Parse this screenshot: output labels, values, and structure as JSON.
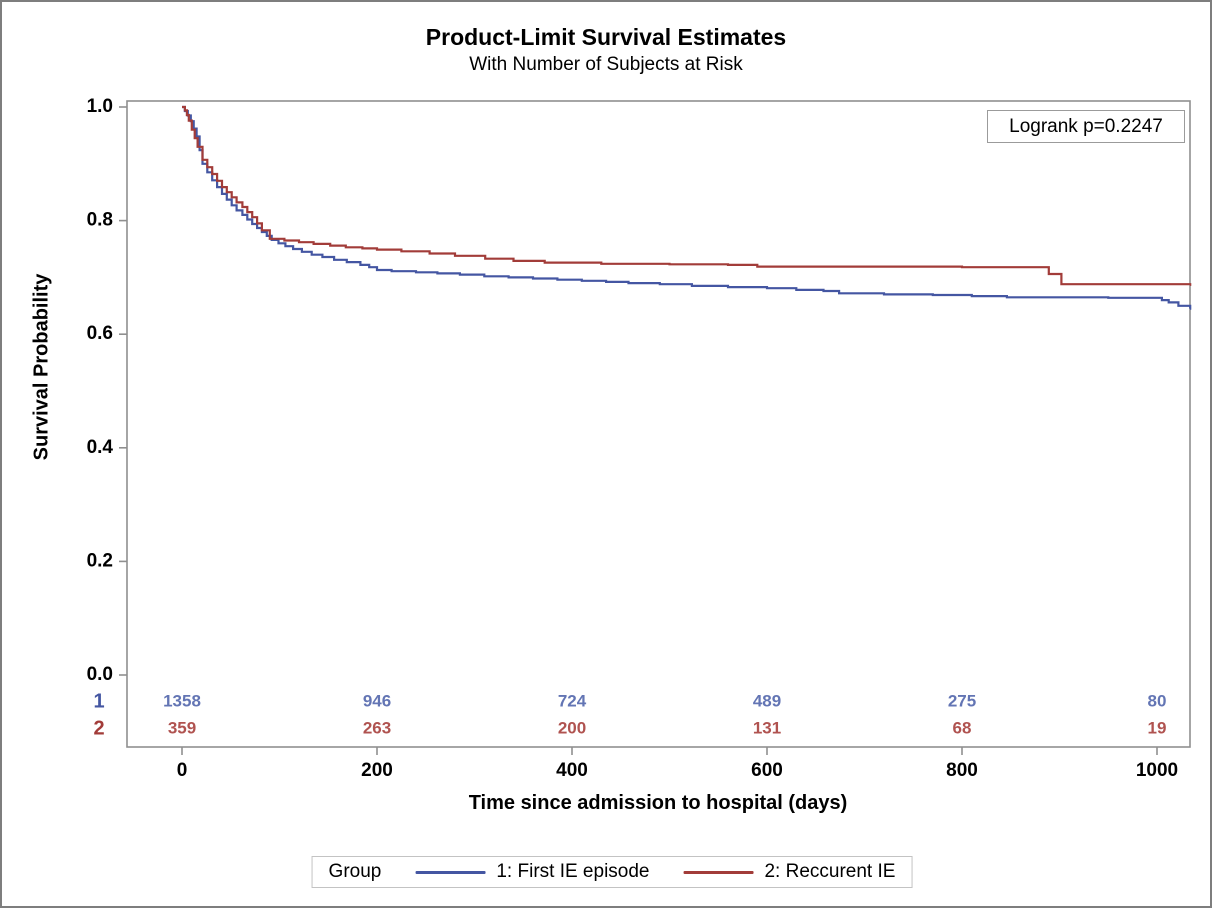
{
  "figure": {
    "title": "Product-Limit Survival Estimates",
    "subtitle": "With Number of Subjects at Risk",
    "pvalue_label": "Logrank p=0.2247"
  },
  "legend": {
    "title": "Group",
    "entries": [
      {
        "label": "1: First IE episode",
        "color": "#4456A2"
      },
      {
        "label": "2: Reccurent IE",
        "color": "#A23C39"
      }
    ]
  },
  "chart_data": {
    "type": "line",
    "subtype": "kaplan-meier-step",
    "title": "Product-Limit Survival Estimates",
    "subtitle": "With Number of Subjects at Risk",
    "xlabel": "Time since admission to hospital (days)",
    "ylabel": "Survival Probability",
    "xlim": [
      0,
      1034
    ],
    "ylim": [
      0.0,
      1.0
    ],
    "x_ticks": [
      0,
      200,
      400,
      600,
      800,
      1000
    ],
    "y_ticks": [
      1.0,
      0.8,
      0.6,
      0.4,
      0.2,
      0.0
    ],
    "grid": false,
    "legend_position": "bottom",
    "annotations": [
      "Logrank p=0.2247"
    ],
    "at_risk_times": [
      0,
      200,
      400,
      600,
      800,
      1000
    ],
    "axis_color": "#8f8f8f",
    "series": [
      {
        "name": "1: First IE episode",
        "group_label": "1",
        "color": "#4456A2",
        "at_risk_color": "#6375B4",
        "n_at_risk": [
          1358,
          946,
          724,
          489,
          275,
          80
        ],
        "points": [
          [
            0,
            1.0
          ],
          [
            3,
            0.993
          ],
          [
            6,
            0.985
          ],
          [
            9,
            0.975
          ],
          [
            12,
            0.962
          ],
          [
            15,
            0.948
          ],
          [
            18,
            0.924
          ],
          [
            21,
            0.9
          ],
          [
            26,
            0.885
          ],
          [
            31,
            0.871
          ],
          [
            36,
            0.859
          ],
          [
            41,
            0.847
          ],
          [
            46,
            0.837
          ],
          [
            51,
            0.827
          ],
          [
            56,
            0.818
          ],
          [
            62,
            0.81
          ],
          [
            67,
            0.802
          ],
          [
            72,
            0.794
          ],
          [
            77,
            0.787
          ],
          [
            82,
            0.78
          ],
          [
            87,
            0.773
          ],
          [
            92,
            0.766
          ],
          [
            99,
            0.76
          ],
          [
            106,
            0.755
          ],
          [
            114,
            0.75
          ],
          [
            123,
            0.745
          ],
          [
            133,
            0.74
          ],
          [
            144,
            0.736
          ],
          [
            156,
            0.731
          ],
          [
            169,
            0.727
          ],
          [
            183,
            0.722
          ],
          [
            192,
            0.718
          ],
          [
            200,
            0.713
          ],
          [
            215,
            0.711
          ],
          [
            240,
            0.709
          ],
          [
            262,
            0.707
          ],
          [
            285,
            0.705
          ],
          [
            310,
            0.702
          ],
          [
            335,
            0.7
          ],
          [
            360,
            0.698
          ],
          [
            385,
            0.696
          ],
          [
            410,
            0.694
          ],
          [
            435,
            0.692
          ],
          [
            458,
            0.69
          ],
          [
            490,
            0.688
          ],
          [
            523,
            0.685
          ],
          [
            560,
            0.683
          ],
          [
            600,
            0.681
          ],
          [
            630,
            0.678
          ],
          [
            658,
            0.676
          ],
          [
            674,
            0.672
          ],
          [
            720,
            0.67
          ],
          [
            770,
            0.669
          ],
          [
            810,
            0.667
          ],
          [
            846,
            0.665
          ],
          [
            950,
            0.664
          ],
          [
            1005,
            0.66
          ],
          [
            1012,
            0.656
          ],
          [
            1022,
            0.65
          ],
          [
            1034,
            0.645
          ]
        ]
      },
      {
        "name": "2: Reccurent IE",
        "group_label": "2",
        "color": "#A23C39",
        "at_risk_color": "#B05350",
        "n_at_risk": [
          359,
          263,
          200,
          131,
          68,
          19
        ],
        "points": [
          [
            0,
            1.0
          ],
          [
            3,
            0.994
          ],
          [
            5,
            0.986
          ],
          [
            7,
            0.976
          ],
          [
            10,
            0.96
          ],
          [
            13,
            0.945
          ],
          [
            16,
            0.93
          ],
          [
            21,
            0.907
          ],
          [
            26,
            0.894
          ],
          [
            31,
            0.882
          ],
          [
            36,
            0.87
          ],
          [
            41,
            0.859
          ],
          [
            46,
            0.85
          ],
          [
            51,
            0.841
          ],
          [
            56,
            0.832
          ],
          [
            62,
            0.824
          ],
          [
            67,
            0.815
          ],
          [
            72,
            0.806
          ],
          [
            77,
            0.795
          ],
          [
            82,
            0.783
          ],
          [
            90,
            0.768
          ],
          [
            105,
            0.765
          ],
          [
            120,
            0.762
          ],
          [
            135,
            0.759
          ],
          [
            152,
            0.756
          ],
          [
            168,
            0.753
          ],
          [
            185,
            0.751
          ],
          [
            200,
            0.749
          ],
          [
            225,
            0.746
          ],
          [
            254,
            0.742
          ],
          [
            280,
            0.738
          ],
          [
            311,
            0.733
          ],
          [
            340,
            0.729
          ],
          [
            372,
            0.726
          ],
          [
            430,
            0.724
          ],
          [
            500,
            0.723
          ],
          [
            560,
            0.722
          ],
          [
            590,
            0.719
          ],
          [
            800,
            0.718
          ],
          [
            889,
            0.706
          ],
          [
            902,
            0.688
          ],
          [
            1034,
            0.687
          ]
        ]
      }
    ]
  }
}
